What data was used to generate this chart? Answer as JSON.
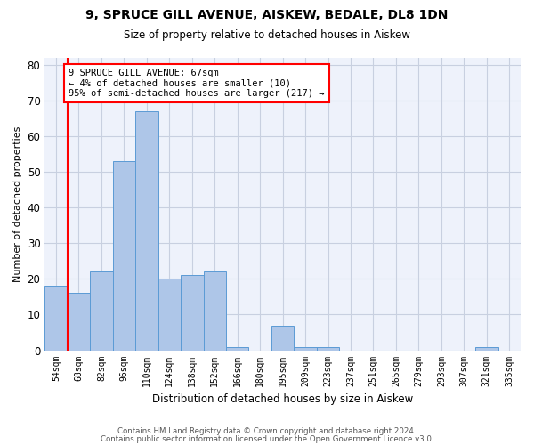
{
  "title_line1": "9, SPRUCE GILL AVENUE, AISKEW, BEDALE, DL8 1DN",
  "title_line2": "Size of property relative to detached houses in Aiskew",
  "xlabel": "Distribution of detached houses by size in Aiskew",
  "ylabel": "Number of detached properties",
  "categories": [
    "54sqm",
    "68sqm",
    "82sqm",
    "96sqm",
    "110sqm",
    "124sqm",
    "138sqm",
    "152sqm",
    "166sqm",
    "180sqm",
    "195sqm",
    "209sqm",
    "223sqm",
    "237sqm",
    "251sqm",
    "265sqm",
    "279sqm",
    "293sqm",
    "307sqm",
    "321sqm",
    "335sqm"
  ],
  "values": [
    18,
    16,
    22,
    53,
    67,
    20,
    21,
    22,
    1,
    0,
    7,
    1,
    1,
    0,
    0,
    0,
    0,
    0,
    0,
    1,
    0
  ],
  "bar_color": "#aec6e8",
  "bar_edge_color": "#5b9bd5",
  "annotation_text": "9 SPRUCE GILL AVENUE: 67sqm\n← 4% of detached houses are smaller (10)\n95% of semi-detached houses are larger (217) →",
  "footer_line1": "Contains HM Land Registry data © Crown copyright and database right 2024.",
  "footer_line2": "Contains public sector information licensed under the Open Government Licence v3.0.",
  "ylim": [
    0,
    82
  ],
  "background_color": "#eef2fb",
  "grid_color": "#c8d0e0"
}
